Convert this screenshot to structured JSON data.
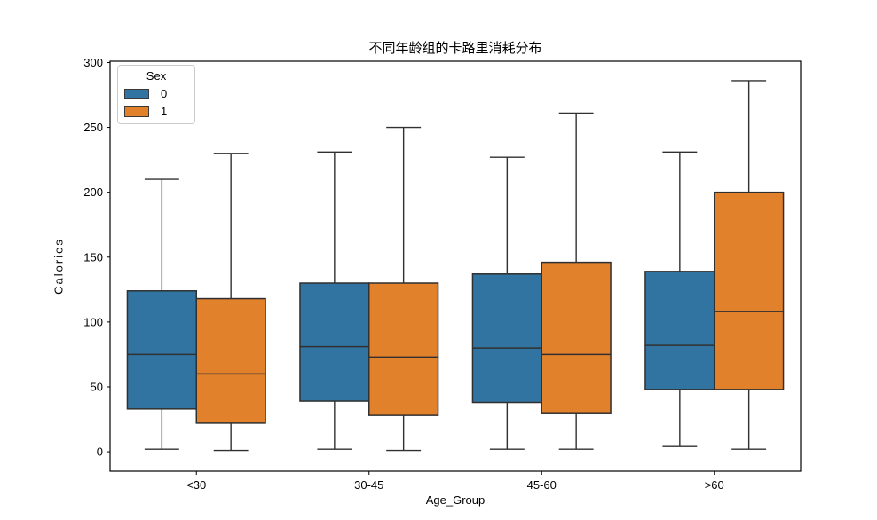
{
  "chart_data": {
    "type": "boxplot",
    "title": "不同年龄组的卡路里消耗分布",
    "xlabel": "Age_Group",
    "ylabel": "Calories",
    "categories": [
      "<30",
      "30-45",
      "45-60",
      ">60"
    ],
    "yticks": [
      0,
      50,
      100,
      150,
      200,
      250,
      300
    ],
    "ylim": [
      -15,
      301
    ],
    "grid": false,
    "legend": {
      "title": "Sex",
      "position": "upper left",
      "entries": [
        {
          "label": "0",
          "color": "#3274a1"
        },
        {
          "label": "1",
          "color": "#e1812c"
        }
      ]
    },
    "line_color": "#303030",
    "spine_color": "#000000",
    "series": [
      {
        "name": "0",
        "color": "#3274a1",
        "boxes": [
          {
            "category": "<30",
            "whislo": 2,
            "q1": 33,
            "med": 75,
            "q3": 124,
            "whishi": 210
          },
          {
            "category": "30-45",
            "whislo": 2,
            "q1": 39,
            "med": 81,
            "q3": 130,
            "whishi": 231
          },
          {
            "category": "45-60",
            "whislo": 2,
            "q1": 38,
            "med": 80,
            "q3": 137,
            "whishi": 227
          },
          {
            "category": ">60",
            "whislo": 4,
            "q1": 48,
            "med": 82,
            "q3": 139,
            "whishi": 231
          }
        ]
      },
      {
        "name": "1",
        "color": "#e1812c",
        "boxes": [
          {
            "category": "<30",
            "whislo": 1,
            "q1": 22,
            "med": 60,
            "q3": 118,
            "whishi": 230
          },
          {
            "category": "30-45",
            "whislo": 1,
            "q1": 28,
            "med": 73,
            "q3": 130,
            "whishi": 250
          },
          {
            "category": "45-60",
            "whislo": 2,
            "q1": 30,
            "med": 75,
            "q3": 146,
            "whishi": 261
          },
          {
            "category": ">60",
            "whislo": 2,
            "q1": 48,
            "med": 108,
            "q3": 200,
            "whishi": 286
          }
        ]
      }
    ]
  }
}
